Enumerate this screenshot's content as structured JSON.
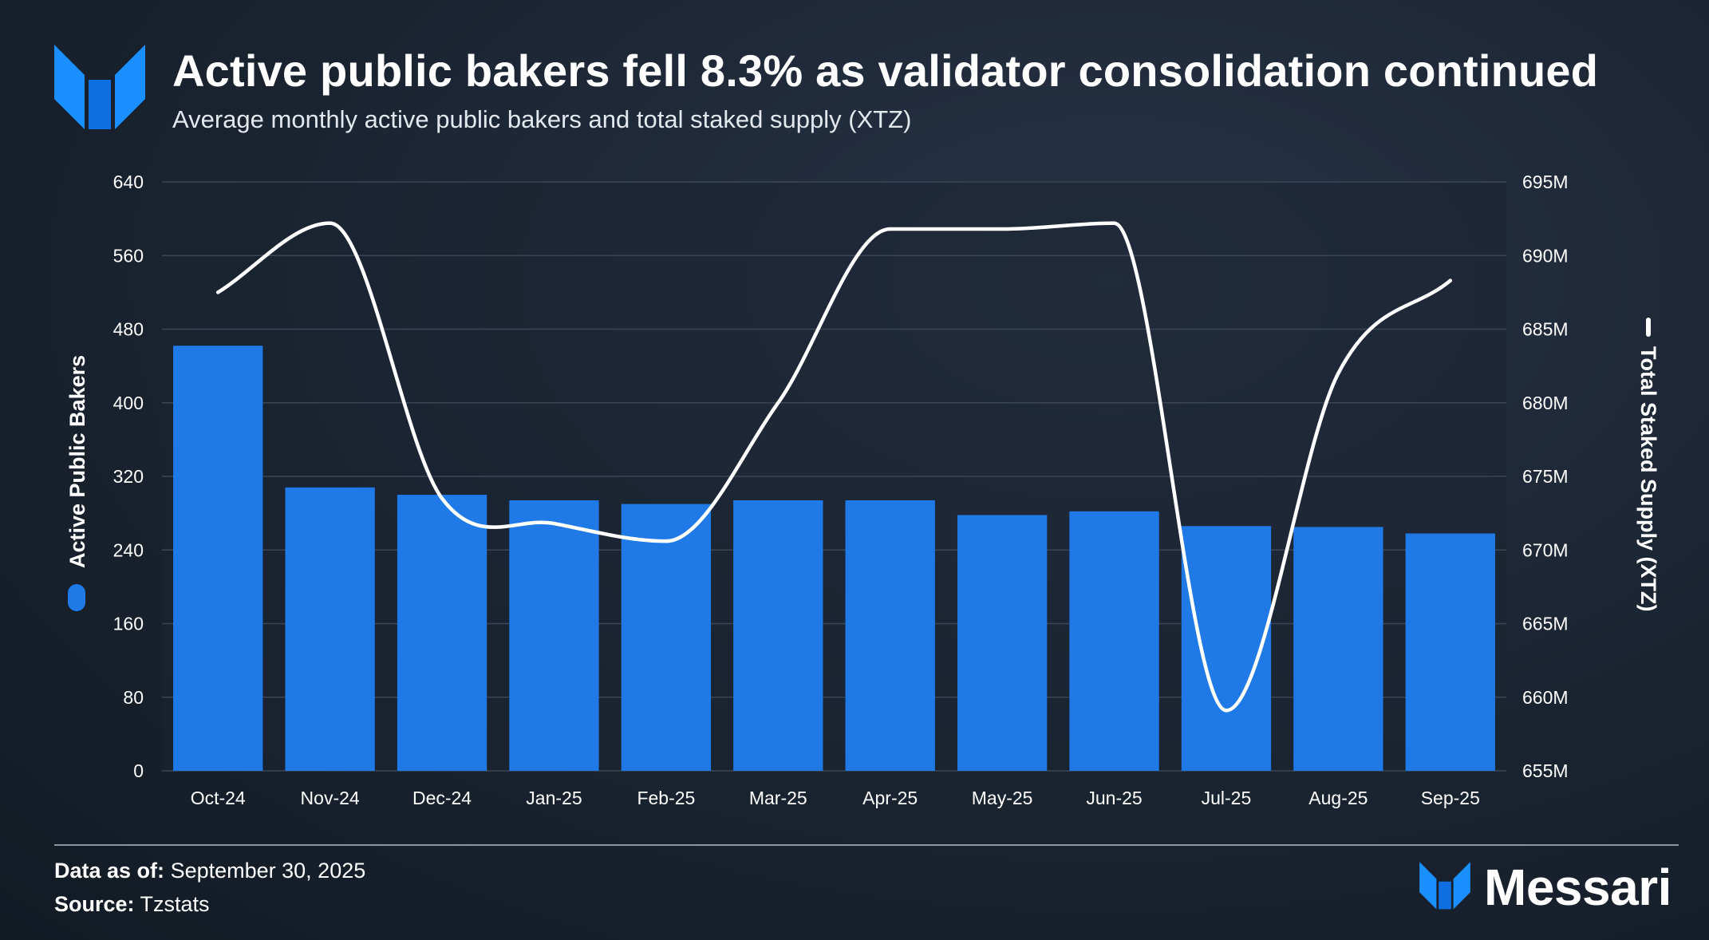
{
  "header": {
    "title": "Active public bakers fell 8.3% as validator consolidation continued",
    "subtitle": "Average monthly active public bakers and total staked supply (XTZ)"
  },
  "chart_data": {
    "type": "bar",
    "categories": [
      "Oct-24",
      "Nov-24",
      "Dec-24",
      "Jan-25",
      "Feb-25",
      "Mar-25",
      "Apr-25",
      "May-25",
      "Jun-25",
      "Jul-25",
      "Aug-25",
      "Sep-25"
    ],
    "series": [
      {
        "name": "Active Public Bakers",
        "type": "bar",
        "axis": "left",
        "color": "#1f7ae8",
        "values": [
          462,
          308,
          300,
          294,
          290,
          294,
          294,
          278,
          282,
          266,
          265,
          258
        ]
      },
      {
        "name": "Total Staked Supply (XTZ)",
        "type": "line",
        "axis": "right",
        "color": "#ffffff",
        "values": [
          687.5,
          692.2,
          673.5,
          671.8,
          670.6,
          680.0,
          691.8,
          691.8,
          692.2,
          659.1,
          682.0,
          688.3
        ]
      }
    ],
    "y_left": {
      "label": "Active Public Bakers",
      "min": 0,
      "max": 640,
      "ticks": [
        "0",
        "80",
        "160",
        "240",
        "320",
        "400",
        "480",
        "560",
        "640"
      ]
    },
    "y_right": {
      "label": "Total Staked Supply (XTZ)",
      "min": 655,
      "max": 695,
      "ticks": [
        "655M",
        "660M",
        "665M",
        "670M",
        "675M",
        "680M",
        "685M",
        "690M",
        "695M"
      ]
    },
    "grid": true
  },
  "footer": {
    "date_label": "Data as of:",
    "date_value": "September 30, 2025",
    "source_label": "Source:",
    "source_value": "Tzstats"
  },
  "brand": {
    "name": "Messari",
    "accent": "#1f7ae8"
  }
}
